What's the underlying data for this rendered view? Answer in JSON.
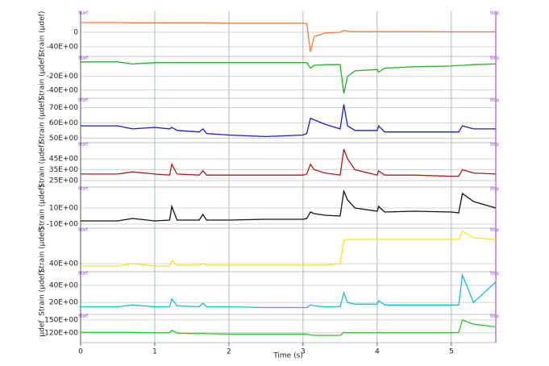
{
  "chart_data": [
    {
      "type": "line",
      "ylabel": "Strain (µdef)",
      "start_label": "Start",
      "stop_label": "Stop",
      "color": "#f07c3a",
      "xlim": [
        0,
        5.6
      ],
      "xticks": [
        0,
        1,
        2,
        3,
        4,
        5
      ],
      "x": [
        0,
        0.5,
        0.7,
        1.0,
        1.2,
        1.23,
        1.3,
        1.6,
        1.65,
        1.7,
        2.0,
        2.5,
        3.0,
        3.05,
        3.1,
        3.15,
        3.3,
        3.5,
        3.55,
        3.6,
        3.7,
        4.0,
        4.02,
        4.1,
        4.5,
        5.0,
        5.1,
        5.15,
        5.3,
        5.6
      ],
      "values": [
        27,
        27,
        26,
        26,
        26,
        26,
        26,
        26,
        26,
        26,
        25,
        25,
        25,
        24,
        -55,
        -12,
        -2,
        0,
        5,
        3,
        2,
        2,
        2,
        2,
        2,
        1,
        1,
        1,
        1,
        1
      ],
      "ylim": [
        -67,
        58
      ],
      "yticks": [
        0,
        {
          "value": -40,
          "label": "-40E+00"
        }
      ]
    },
    {
      "type": "line",
      "ylabel": "Strain (µdef)",
      "start_label": "Start",
      "stop_label": "Stop",
      "color": "#22b322",
      "xlim": [
        0,
        5.6
      ],
      "xticks": [
        0,
        1,
        2,
        3,
        4,
        5
      ],
      "x": [
        0,
        0.5,
        0.7,
        1.0,
        1.2,
        1.23,
        1.3,
        1.6,
        1.65,
        1.7,
        2.0,
        2.5,
        3.0,
        3.05,
        3.1,
        3.15,
        3.3,
        3.5,
        3.55,
        3.6,
        3.7,
        4.0,
        4.02,
        4.1,
        4.5,
        5.0,
        5.1,
        5.15,
        5.3,
        5.6
      ],
      "values": [
        1,
        1,
        -2,
        0,
        0,
        0,
        0,
        0,
        0,
        0,
        0,
        0,
        0,
        0,
        -8,
        -4,
        -3,
        -3,
        -45,
        -20,
        -12,
        -10,
        -14,
        -8,
        -6,
        -5,
        -4,
        -4,
        -3,
        -2
      ],
      "ylim": [
        -52,
        9
      ],
      "yticks": [
        {
          "value": -20,
          "label": "-20E+00"
        },
        {
          "value": -40,
          "label": "-40E+00"
        }
      ]
    },
    {
      "type": "line",
      "ylabel": "Strain (µdef)",
      "start_label": "Start",
      "stop_label": "Stop",
      "color": "#1a1acc",
      "xlim": [
        0,
        5.6
      ],
      "xticks": [
        0,
        1,
        2,
        3,
        4,
        5
      ],
      "x": [
        0,
        0.5,
        0.7,
        1.0,
        1.2,
        1.23,
        1.3,
        1.6,
        1.65,
        1.7,
        2.0,
        2.5,
        3.0,
        3.05,
        3.1,
        3.15,
        3.3,
        3.5,
        3.55,
        3.6,
        3.7,
        4.0,
        4.02,
        4.1,
        4.5,
        5.0,
        5.1,
        5.15,
        5.3,
        5.6
      ],
      "values": [
        58,
        58,
        56,
        57,
        56,
        57,
        55,
        54,
        56,
        53,
        52,
        51,
        52,
        53,
        63,
        62,
        59,
        56,
        72,
        58,
        55,
        55,
        58,
        54,
        54,
        54,
        54,
        58,
        56,
        56
      ],
      "ylim": [
        47,
        76
      ],
      "yticks": [
        {
          "value": 70,
          "label": "70E+00"
        },
        {
          "value": 60,
          "label": "60E+00"
        },
        {
          "value": 50,
          "label": "50E+00"
        }
      ]
    },
    {
      "type": "line",
      "ylabel": "Strain (µdef)",
      "start_label": "Start",
      "stop_label": "Stop",
      "color": "#b01818",
      "xlim": [
        0,
        5.6
      ],
      "xticks": [
        0,
        1,
        2,
        3,
        4,
        5
      ],
      "x": [
        0,
        0.5,
        0.7,
        1.0,
        1.2,
        1.23,
        1.3,
        1.6,
        1.65,
        1.7,
        2.0,
        2.5,
        3.0,
        3.05,
        3.1,
        3.15,
        3.3,
        3.5,
        3.55,
        3.6,
        3.7,
        4.0,
        4.02,
        4.1,
        4.5,
        5.0,
        5.1,
        5.15,
        5.3,
        5.6
      ],
      "values": [
        31,
        31,
        33,
        31,
        30,
        40,
        31,
        30,
        34,
        30,
        30,
        30,
        30,
        31,
        40,
        35,
        32,
        30,
        54,
        45,
        35,
        30,
        34,
        30,
        30,
        29,
        29,
        35,
        32,
        31
      ],
      "ylim": [
        19,
        60
      ],
      "yticks": [
        {
          "value": 45,
          "label": "45E+00"
        },
        {
          "value": 35,
          "label": "35E+00"
        },
        {
          "value": 25,
          "label": "25E+00"
        }
      ]
    },
    {
      "type": "line",
      "ylabel": "Strain (µdef)",
      "start_label": "Start",
      "stop_label": "Stop",
      "color": "#111111",
      "xlim": [
        0,
        5.6
      ],
      "xticks": [
        0,
        1,
        2,
        3,
        4,
        5
      ],
      "x": [
        0,
        0.5,
        0.7,
        1.0,
        1.2,
        1.23,
        1.3,
        1.6,
        1.65,
        1.7,
        2.0,
        2.5,
        3.0,
        3.05,
        3.1,
        3.15,
        3.3,
        3.5,
        3.55,
        3.6,
        3.7,
        4.0,
        4.02,
        4.1,
        4.5,
        5.0,
        5.1,
        5.15,
        5.3,
        5.6
      ],
      "values": [
        -6,
        -6,
        -3,
        -6,
        -5,
        12,
        -5,
        -5,
        2,
        -5,
        -5,
        -4,
        -4,
        -3,
        5,
        3,
        1,
        0,
        31,
        20,
        10,
        6,
        12,
        5,
        6,
        5,
        4,
        28,
        18,
        10
      ],
      "ylim": [
        -15,
        36
      ],
      "yticks": [
        {
          "value": 10,
          "label": "10E+00"
        },
        {
          "value": -10,
          "label": "-10E+00"
        }
      ]
    },
    {
      "type": "line",
      "ylabel": "Strain (µdef)",
      "start_label": "Start",
      "stop_label": "Stop",
      "color": "#f2e620",
      "xlim": [
        0,
        5.6
      ],
      "xticks": [
        0,
        1,
        2,
        3,
        4,
        5
      ],
      "x": [
        0,
        0.5,
        0.7,
        1.0,
        1.2,
        1.23,
        1.3,
        1.6,
        1.65,
        1.7,
        2.0,
        2.5,
        3.0,
        3.05,
        3.1,
        3.15,
        3.3,
        3.5,
        3.55,
        3.6,
        3.7,
        4.0,
        4.02,
        4.1,
        4.5,
        5.0,
        5.1,
        5.15,
        5.3,
        5.6
      ],
      "values": [
        37,
        37,
        40,
        37,
        37,
        44,
        38,
        38,
        40,
        38,
        38,
        38,
        38,
        38,
        38,
        38,
        38,
        40,
        69,
        70,
        70,
        70,
        70,
        70,
        70,
        70,
        70,
        80,
        72,
        70
      ],
      "ylim": [
        30,
        84
      ],
      "yticks": [
        {
          "value": 40,
          "label": "40E+00"
        }
      ]
    },
    {
      "type": "line",
      "ylabel": "Strain (µdef)",
      "start_label": "Start",
      "stop_label": "Stop",
      "color": "#1ab8e0",
      "xlim": [
        0,
        5.6
      ],
      "xticks": [
        0,
        1,
        2,
        3,
        4,
        5
      ],
      "x": [
        0,
        0.5,
        0.7,
        1.0,
        1.2,
        1.23,
        1.3,
        1.6,
        1.65,
        1.7,
        2.0,
        2.5,
        3.0,
        3.05,
        3.1,
        3.15,
        3.3,
        3.5,
        3.55,
        3.6,
        3.7,
        4.0,
        4.02,
        4.1,
        4.5,
        5.0,
        5.1,
        5.15,
        5.3,
        5.6
      ],
      "values": [
        15,
        15,
        17,
        15,
        15,
        24,
        16,
        15,
        19,
        15,
        15,
        14,
        14,
        14,
        17,
        16,
        15,
        15,
        31,
        20,
        18,
        18,
        22,
        17,
        17,
        17,
        17,
        52,
        20,
        44
      ],
      "ylim": [
        6,
        56
      ],
      "yticks": [
        {
          "value": 40,
          "label": "40E+00"
        },
        {
          "value": 20,
          "label": "20E+00"
        }
      ]
    },
    {
      "type": "line",
      "ylabel": "µdef",
      "start_label": "Start",
      "stop_label": "Stop",
      "color": "#22cc22",
      "xlim": [
        0,
        5.6
      ],
      "xticks": [
        0,
        1,
        2,
        3,
        4,
        5
      ],
      "xlabel": "Time (s)",
      "x": [
        0,
        0.5,
        0.7,
        1.0,
        1.2,
        1.23,
        1.3,
        1.6,
        1.65,
        1.7,
        2.0,
        2.5,
        3.0,
        3.05,
        3.1,
        3.15,
        3.3,
        3.5,
        3.55,
        3.6,
        3.7,
        4.0,
        4.02,
        4.1,
        4.5,
        5.0,
        5.1,
        5.15,
        5.3,
        5.6
      ],
      "values": [
        121,
        121,
        121,
        120,
        120,
        126,
        119,
        118,
        119,
        118,
        117,
        117,
        117,
        117,
        115,
        114,
        114,
        114,
        121,
        120,
        120,
        120,
        121,
        120,
        120,
        120,
        121,
        150,
        140,
        134
      ],
      "ylim": [
        97,
        163
      ],
      "yticks": [
        {
          "value": 150,
          "label": "150E+00"
        },
        {
          "value": 120,
          "label": "120E+00"
        }
      ]
    }
  ]
}
